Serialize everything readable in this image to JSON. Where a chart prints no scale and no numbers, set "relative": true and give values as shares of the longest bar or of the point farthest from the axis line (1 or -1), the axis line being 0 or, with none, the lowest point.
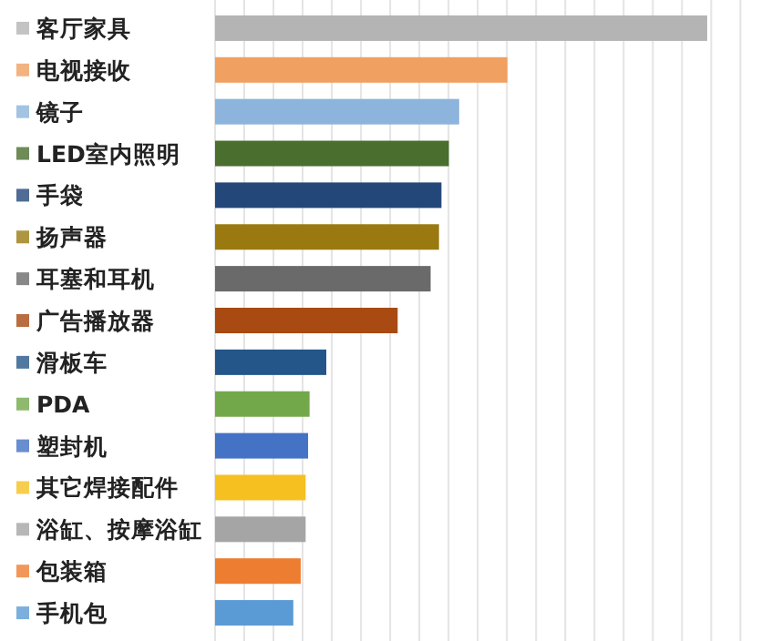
{
  "chart_data": {
    "type": "bar",
    "orientation": "horizontal",
    "relative": true,
    "grid": "x",
    "categories": [
      "客厅家具",
      "电视接收",
      "镜子",
      "LED室内照明",
      "手袋",
      "扬声器",
      "耳塞和耳机",
      "广告播放器",
      "滑板车",
      "PDA",
      "塑封机",
      "其它焊接配件",
      "浴缸、按摩浴缸",
      "包装箱",
      "手机包"
    ],
    "values": [
      1,
      0.594,
      0.496,
      0.475,
      0.46,
      0.455,
      0.438,
      0.371,
      0.226,
      0.192,
      0.189,
      0.184,
      0.184,
      0.174,
      0.159
    ],
    "colors": [
      "#b4b4b4",
      "#f0a060",
      "#8cb4dc",
      "#4a6e2e",
      "#24477a",
      "#9a7a10",
      "#6a6a6a",
      "#a84a12",
      "#24568a",
      "#72a84a",
      "#4472c4",
      "#f5c020",
      "#a5a5a5",
      "#ed7d31",
      "#5b9bd5"
    ]
  }
}
